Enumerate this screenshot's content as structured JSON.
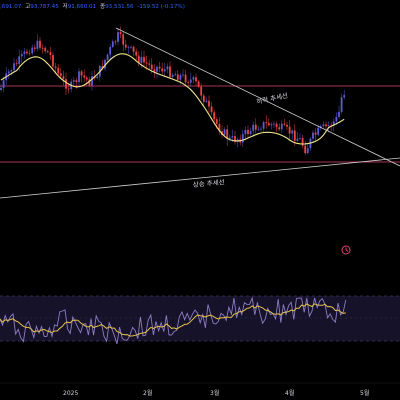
{
  "ohlc_bar": {
    "open_value": ",691.07",
    "high_key": "고",
    "high_value": "93,787.45",
    "low_key": "저",
    "low_value": "91,660.01",
    "close_key": "종",
    "close_value": "93,531.56",
    "change": "-159.52 (-0.17%)"
  },
  "annotations": {
    "downtrend_label": "하락 추세선",
    "uptrend_label": "상승 추세선"
  },
  "x_axis": {
    "labels": [
      "2025",
      "2월",
      "3월",
      "4월",
      "5월"
    ]
  },
  "icons": {
    "alert": "alert-clock-icon"
  },
  "colors": {
    "up": "#5b5bd6",
    "down": "#ef4444",
    "ma": "#f0e68c",
    "trend_line": "#cfcfcf",
    "horizontal_line": "#e0456e",
    "rsi": "#8e7cc3",
    "rsi_ma": "#e6c34d"
  },
  "chart_data": {
    "type": "candlestick",
    "x_tick_labels": [
      "2025",
      "2월",
      "3월",
      "4월",
      "5월"
    ],
    "series": [
      {
        "name": "price",
        "type": "candlestick"
      },
      {
        "name": "moving_average",
        "type": "line"
      },
      {
        "name": "rsi",
        "type": "line"
      },
      {
        "name": "rsi_ma",
        "type": "line"
      }
    ]
  }
}
